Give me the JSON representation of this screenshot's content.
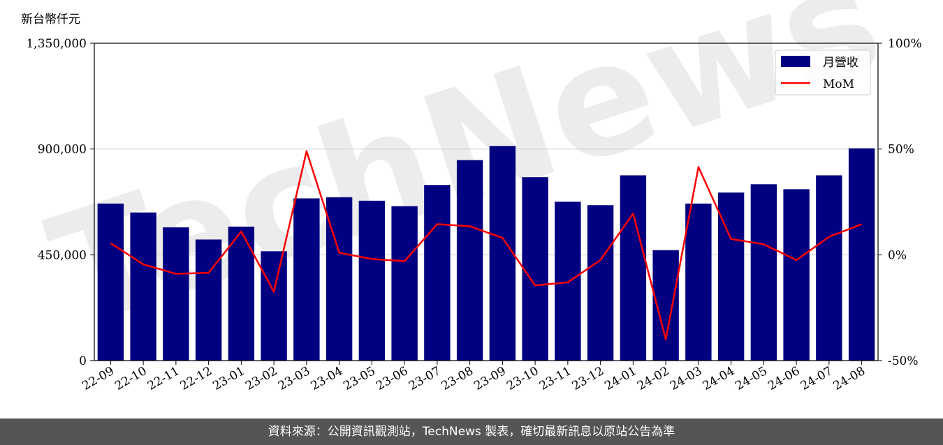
{
  "chart_data": {
    "type": "bar",
    "y_unit_label": "新台幣仟元",
    "categories": [
      "22-09",
      "22-10",
      "22-11",
      "22-12",
      "23-01",
      "23-02",
      "23-03",
      "23-04",
      "23-05",
      "23-06",
      "23-07",
      "23-08",
      "23-09",
      "23-10",
      "23-11",
      "23-12",
      "24-01",
      "24-02",
      "24-03",
      "24-04",
      "24-05",
      "24-06",
      "24-07",
      "24-08"
    ],
    "series": [
      {
        "name": "月營收",
        "kind": "bar",
        "axis": "left",
        "color": "#000080",
        "values": [
          668000,
          630000,
          567000,
          515000,
          570000,
          465000,
          690000,
          695000,
          680000,
          657000,
          747000,
          853000,
          913000,
          780000,
          676000,
          661000,
          788000,
          470000,
          668000,
          715000,
          750000,
          729000,
          788000,
          903000
        ]
      },
      {
        "name": "MoM",
        "kind": "line",
        "axis": "right",
        "color": "#ff0000",
        "values": [
          5.5,
          -4.5,
          -9.0,
          -8.5,
          11.0,
          -17.5,
          49.0,
          1.0,
          -2.0,
          -3.0,
          14.5,
          13.5,
          8.0,
          -14.5,
          -13.0,
          -2.5,
          19.5,
          -40.0,
          41.5,
          7.5,
          5.0,
          -2.5,
          8.5,
          14.5
        ]
      }
    ],
    "y_left": {
      "lim": [
        0,
        1350000
      ],
      "ticks": [
        "0",
        "450,000",
        "900,000",
        "1,350,000"
      ]
    },
    "y_right": {
      "lim": [
        -50,
        100
      ],
      "ticks": [
        "-50%",
        "0%",
        "50%",
        "100%"
      ]
    },
    "grid": "horizontal",
    "legend_position": "top-right",
    "watermark": "TechNews"
  },
  "footer": {
    "source_text": "資料來源：公開資訊觀測站，TechNews 製表，確切最新訊息以原站公告為準"
  }
}
